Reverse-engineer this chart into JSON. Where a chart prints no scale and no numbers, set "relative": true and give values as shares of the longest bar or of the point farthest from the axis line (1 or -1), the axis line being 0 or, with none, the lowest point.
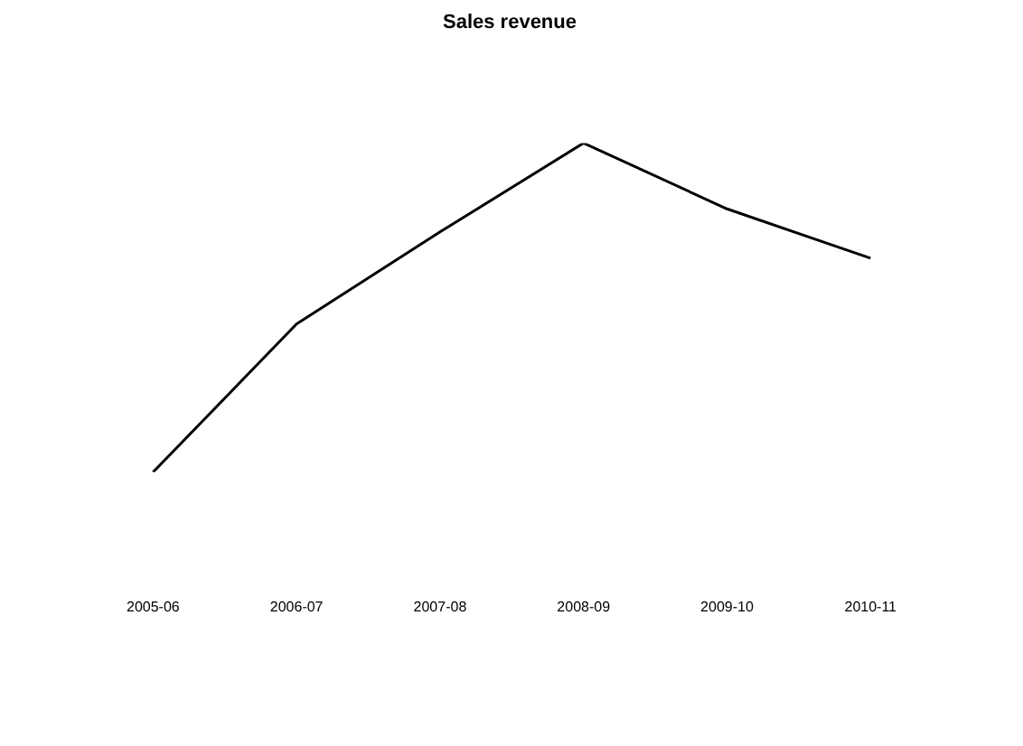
{
  "chart_data": {
    "type": "line",
    "title": "Sales revenue",
    "relative": true,
    "categories": [
      "2005-06",
      "2006-07",
      "2007-08",
      "2008-09",
      "2009-10",
      "2010-11"
    ],
    "series": [
      {
        "color": "#000000",
        "values": [
          0,
          0.45,
          0.73,
          1,
          0.8,
          0.65
        ]
      }
    ],
    "grid": false,
    "legend": false,
    "marker": "none",
    "line_style": "solid"
  }
}
